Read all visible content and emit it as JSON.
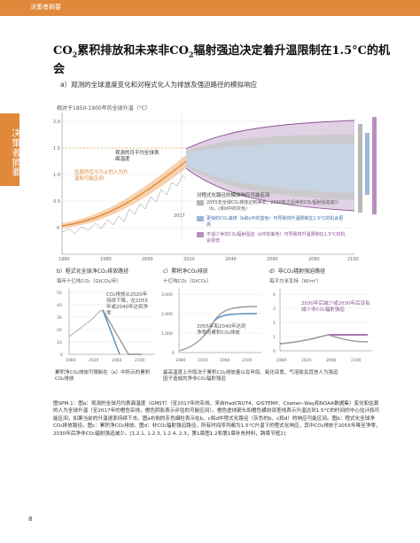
{
  "header": {
    "section": "决策者摘要"
  },
  "sidetab": {
    "label": "决策者摘要"
  },
  "title": {
    "part1": "CO",
    "sub1": "2",
    "part2": "累积排放和未来非CO",
    "sub2": "2",
    "part3": "辐射强迫决定着升温限制在1.5°C的机会"
  },
  "panel_a": {
    "subtitle": "a）观测的全球温度变化和对程式化人为排放及强迫路径的模拟响应",
    "ytitle": "相对于1850-1900年的全球升温（°C）",
    "annot_observed": "观测的月平均全球表面温度",
    "annot_estimated": "估算的迄今为止的人为升温和可能区间",
    "yticks": [
      "2.0",
      "1.5",
      "1.0",
      "0.5",
      "0"
    ],
    "xticks": [
      "1960",
      "1980",
      "2000",
      "2020",
      "2040",
      "2060",
      "2080",
      "2100"
    ],
    "marker_2017": "2017",
    "legend_title": "对程式化路径的模拟响应可能区间",
    "legend_gray": "2055年全球CO₂排放达到净零，2030年之后净非CO₂辐射强迫减少（b，c和d中的灰色）",
    "legend_blue": "更快的CO₂减排（b和c中的蓝色）可导致将升温限制在1.5°C的机会更高",
    "legend_purple": "不减少净非CO₂辐射强迫（d中的紫色）可导致将升温限制在1.5°C的机会更低",
    "colors": {
      "orange": "#e0893a",
      "gray": "#9b9b9b",
      "blue": "#5b8bbf",
      "purple": "#8e4f96"
    }
  },
  "panel_b": {
    "title": "b）程式化全球净CO₂排放路径",
    "unit": "每年十亿吨CO₂（GtCO₂/年）",
    "note": "CO₂排放从2020年持续下降，在2055年或2040年达到净零",
    "caption": "累积净CO₂排放可限制在（e）中所示的累积CO₂排放",
    "yticks": [
      "50",
      "40",
      "30",
      "20",
      "10",
      "0"
    ],
    "xticks": [
      "1980",
      "2020",
      "2060",
      "2100"
    ]
  },
  "panel_c": {
    "title": "c）累积净CO₂排放",
    "unit": "十亿吨CO₂（GtCO₂）",
    "note": "2055年和2040年达到净零的累积CO₂排放",
    "caption": "最高温度上升取决于累积CO₂排放量以及甲烷、氧化亚氮、气溶胶及其他人为强迫因子造成的净非CO₂辐射强迫",
    "yticks": [
      "3,000",
      "2,000",
      "1,000",
      "0"
    ],
    "xticks": [
      "1980",
      "2020",
      "2060",
      "2100"
    ]
  },
  "panel_d": {
    "title": "d）非CO₂辐射强迫路径",
    "unit": "每平方米瓦特（W/m²）",
    "note": "2030年后减少或2030年后没有减少非CO₂辐射强迫",
    "yticks": [
      "4",
      "3",
      "2",
      "1",
      "0"
    ],
    "xticks": [
      "1980",
      "2020",
      "2060",
      "2100"
    ]
  },
  "caption": {
    "text": "图SPM.1：图a：观测的全球月均表面温度（GMST）（至2017年的灰线，来自HadCRUT4、GISTEMP、Cowtan–Way和NOAA数据集）变化和估算的人为全球升温（至2017年的橙色实线，橙色阴影表示评估的可能区间）。橙色虚线箭头和橙色横向误差线表示升温达到1.5°C的时间的中心估计和可能区间，如果当前的升温速率持续下去。图a右侧的灰色烟柱表示在b、c和d中程式化路径（灰色的b、c和d）的响应可能区间。图b：程式化全球净CO₂排放路径。图c：累积净CO₂排放。图d：非CO₂辐射强迫路径。所有时间序列都为1.5°C升温下的程式化响应，其中CO₂排放于2055年降至净零，2030年后净非CO₂辐射强迫减少。[1.2.1, 1.2.3, 1.2.4, 2.3，第1章图1.2和第1章补充材料，跨章节框2]"
  },
  "page": {
    "number": "8"
  }
}
